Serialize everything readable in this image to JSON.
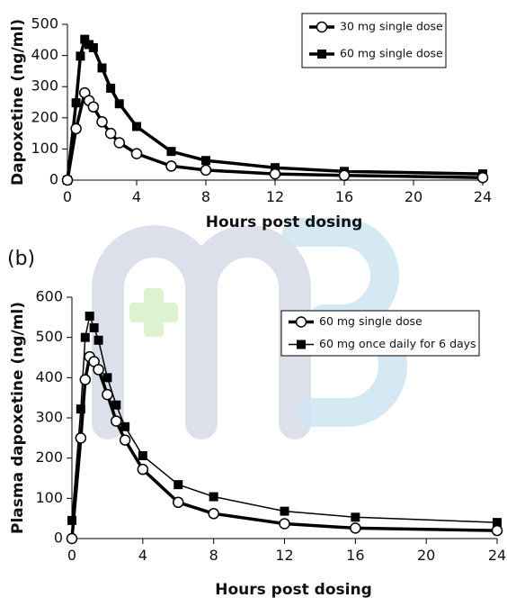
{
  "watermark": {
    "letters": "m3",
    "colors": {
      "letters": "#d5dbe8",
      "letters_accent": "#cfe7f3",
      "cross": "#dff2cf"
    }
  },
  "chart_data": [
    {
      "type": "line",
      "panel_label": "",
      "title": "",
      "xlabel": "Hours post dosing",
      "ylabel": "Dapoxetine (ng/ml)",
      "xlim": [
        0,
        24
      ],
      "ylim": [
        0,
        500
      ],
      "xticks": [
        "0",
        "4",
        "8",
        "12",
        "16",
        "20",
        "24"
      ],
      "yticks": [
        "0",
        "100",
        "200",
        "300",
        "400",
        "500"
      ],
      "grid": false,
      "legend_position": "top-right",
      "series": [
        {
          "name": "30 mg single dose",
          "marker": "circle-open",
          "color": "#000000",
          "x": [
            0,
            0.5,
            1,
            1.25,
            1.5,
            2,
            2.5,
            3,
            4,
            6,
            8,
            12,
            16,
            24
          ],
          "y": [
            0,
            165,
            280,
            255,
            235,
            187,
            150,
            120,
            85,
            45,
            32,
            20,
            15,
            8
          ]
        },
        {
          "name": "60 mg single dose",
          "marker": "square-filled",
          "color": "#000000",
          "x": [
            0,
            0.5,
            0.75,
            1,
            1.25,
            1.5,
            2,
            2.5,
            3,
            4,
            6,
            8,
            12,
            16,
            24
          ],
          "y": [
            0,
            248,
            398,
            452,
            435,
            425,
            360,
            295,
            245,
            172,
            92,
            63,
            40,
            28,
            20
          ]
        }
      ]
    },
    {
      "type": "line",
      "panel_label": "(b)",
      "title": "",
      "xlabel": "Hours post dosing",
      "ylabel": "Plasma dapoxetine (ng/ml)",
      "xlim": [
        0,
        24
      ],
      "ylim": [
        0,
        600
      ],
      "xticks": [
        "0",
        "4",
        "8",
        "12",
        "16",
        "20",
        "24"
      ],
      "yticks": [
        "0",
        "100",
        "200",
        "300",
        "400",
        "500",
        "600"
      ],
      "grid": false,
      "legend_position": "top-right",
      "series": [
        {
          "name": "60 mg single dose",
          "marker": "circle-open",
          "color": "#000000",
          "x": [
            0,
            0.5,
            0.75,
            1,
            1.25,
            1.5,
            2,
            2.5,
            3,
            4,
            6,
            8,
            12,
            16,
            24
          ],
          "y": [
            0,
            250,
            395,
            452,
            440,
            420,
            358,
            292,
            245,
            172,
            90,
            62,
            37,
            26,
            20
          ]
        },
        {
          "name": "60 mg once daily for 6 days",
          "marker": "square-filled",
          "color": "#000000",
          "x": [
            0,
            0.5,
            0.75,
            1,
            1.25,
            1.5,
            2,
            2.5,
            3,
            4,
            6,
            8,
            12,
            16,
            24
          ],
          "y": [
            45,
            322,
            500,
            553,
            524,
            493,
            400,
            332,
            278,
            206,
            134,
            104,
            68,
            53,
            40
          ]
        }
      ]
    }
  ]
}
